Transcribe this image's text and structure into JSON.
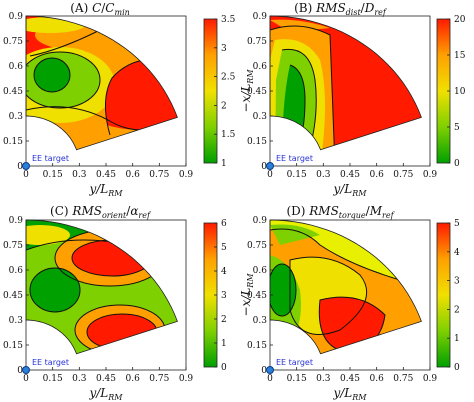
{
  "chart_data": [
    {
      "type": "heatmap",
      "title": "(A) C/C_min",
      "title_parts": {
        "letter": "(A) ",
        "sym": "C",
        "sep": "/",
        "den": "C",
        "den_sub": "min"
      },
      "xlabel": "y/L_RM",
      "ylabel": "",
      "xticks": [
        "0",
        "0.15",
        "0.3",
        "0.45",
        "0.6",
        "0.75",
        "0.9"
      ],
      "yticks": [
        "0",
        "0.15",
        "0.3",
        "0.45",
        "0.6",
        "0.75",
        "0.9"
      ],
      "xlim": [
        0,
        0.9
      ],
      "ylim": [
        0,
        0.9
      ],
      "colorbar": {
        "min": 1,
        "max": 3.5,
        "ticks": [
          "1",
          "1.5",
          "2",
          "2.5",
          "3",
          "3.5"
        ]
      },
      "annotation": "EE target"
    },
    {
      "type": "heatmap",
      "title": "(B) RMS_dist/D_ref",
      "title_parts": {
        "letter": "(B) ",
        "sym": "RMS",
        "sub": "dist",
        "sep": "/",
        "den": "D",
        "den_sub": "ref"
      },
      "xlabel": "y/L_RM",
      "ylabel": "−x/L_RM",
      "xticks": [
        "0",
        "0.15",
        "0.3",
        "0.45",
        "0.6",
        "0.75",
        "0.9"
      ],
      "yticks": [
        "0",
        "0.15",
        "0.3",
        "0.45",
        "0.6",
        "0.75",
        "0.9"
      ],
      "xlim": [
        0,
        0.9
      ],
      "ylim": [
        0,
        0.9
      ],
      "colorbar": {
        "min": 0,
        "max": 20,
        "ticks": [
          "0",
          "5",
          "10",
          "15",
          "20"
        ]
      },
      "annotation": "EE target"
    },
    {
      "type": "heatmap",
      "title": "(C) RMS_orient/α_ref",
      "title_parts": {
        "letter": "(C) ",
        "sym": "RMS",
        "sub": "orient",
        "sep": "/",
        "den": "α",
        "den_sub": "ref"
      },
      "xlabel": "y/L_RM",
      "ylabel": "",
      "xticks": [
        "0",
        "0.15",
        "0.3",
        "0.45",
        "0.6",
        "0.75",
        "0.9"
      ],
      "yticks": [
        "0",
        "0.15",
        "0.3",
        "0.45",
        "0.6",
        "0.75",
        "0.9"
      ],
      "xlim": [
        0,
        0.9
      ],
      "ylim": [
        0,
        0.9
      ],
      "colorbar": {
        "min": 0,
        "max": 6,
        "ticks": [
          "0",
          "1",
          "2",
          "3",
          "4",
          "5",
          "6"
        ]
      },
      "annotation": "EE target"
    },
    {
      "type": "heatmap",
      "title": "(D) RMS_torque/M_ref",
      "title_parts": {
        "letter": "(D) ",
        "sym": "RMS",
        "sub": "torque",
        "sep": "/",
        "den": "M",
        "den_sub": "ref"
      },
      "xlabel": "y/L_RM",
      "ylabel": "−x/L_RM",
      "xticks": [
        "0",
        "0.15",
        "0.3",
        "0.45",
        "0.6",
        "0.75",
        "0.9"
      ],
      "yticks": [
        "0",
        "0.15",
        "0.3",
        "0.45",
        "0.6",
        "0.75",
        "0.9"
      ],
      "xlim": [
        0,
        0.9
      ],
      "ylim": [
        0,
        0.9
      ],
      "colorbar": {
        "min": 0,
        "max": 5,
        "ticks": [
          "0",
          "1",
          "2",
          "3",
          "4",
          "5"
        ]
      },
      "annotation": "EE target"
    }
  ],
  "colors": {
    "low": "#00a000",
    "mid_low": "#7fd000",
    "mid": "#f0e000",
    "mid_high": "#ffa000",
    "high": "#ff1a00",
    "marker": "#2a7fd8",
    "annotation": "#2a34d8"
  }
}
